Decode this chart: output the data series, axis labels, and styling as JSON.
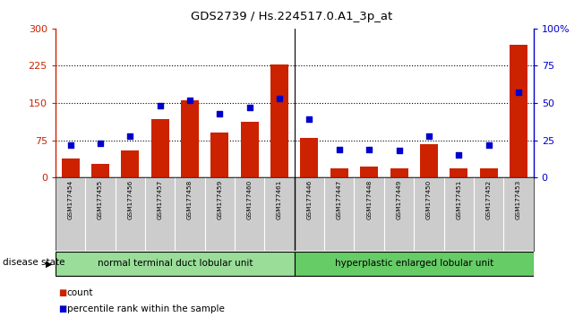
{
  "title": "GDS2739 / Hs.224517.0.A1_3p_at",
  "samples": [
    "GSM177454",
    "GSM177455",
    "GSM177456",
    "GSM177457",
    "GSM177458",
    "GSM177459",
    "GSM177460",
    "GSM177461",
    "GSM177446",
    "GSM177447",
    "GSM177448",
    "GSM177449",
    "GSM177450",
    "GSM177451",
    "GSM177452",
    "GSM177453"
  ],
  "counts": [
    38,
    28,
    55,
    118,
    155,
    90,
    113,
    228,
    80,
    18,
    22,
    18,
    68,
    18,
    18,
    268
  ],
  "percentiles": [
    22,
    23,
    28,
    48,
    52,
    43,
    47,
    53,
    39,
    19,
    19,
    18,
    28,
    15,
    22,
    57
  ],
  "group1_label": "normal terminal duct lobular unit",
  "group1_count": 8,
  "group2_label": "hyperplastic enlarged lobular unit",
  "group2_count": 8,
  "disease_state_label": "disease state",
  "left_yticks": [
    0,
    75,
    150,
    225,
    300
  ],
  "right_yticks": [
    0,
    25,
    50,
    75,
    100
  ],
  "right_ytick_labels": [
    "0",
    "25",
    "50",
    "75",
    "100%"
  ],
  "bar_color": "#cc2200",
  "dot_color": "#0000cc",
  "group1_color": "#99dd99",
  "group2_color": "#66cc66",
  "bg_color": "#cccccc",
  "legend_count_label": "count",
  "legend_pct_label": "percentile rank within the sample"
}
